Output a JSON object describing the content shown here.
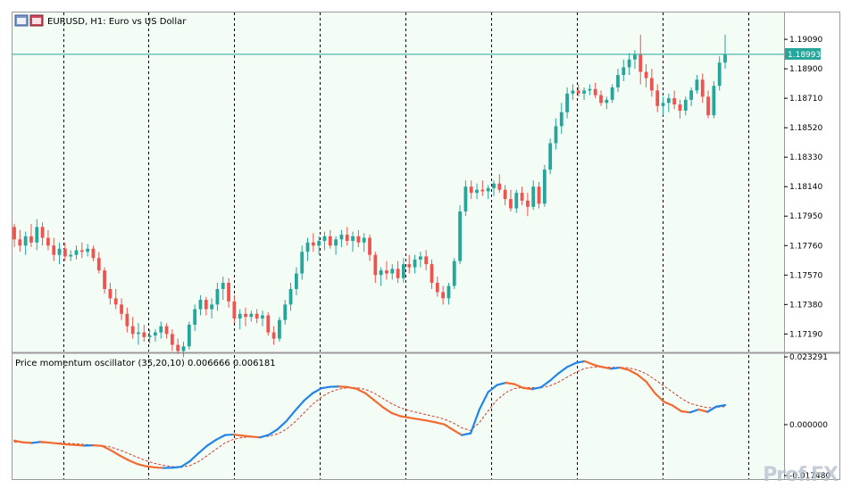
{
  "main_chart": {
    "title": "EURUSD, H1:  Euro vs US Dollar",
    "current_price_label": "1.18993",
    "current_price": 1.18993,
    "price_min": 1.171,
    "price_max": 1.1924,
    "price_ticks": [
      "1.19090",
      "1.18900",
      "1.18710",
      "1.18520",
      "1.18330",
      "1.18140",
      "1.17950",
      "1.17760",
      "1.17570",
      "1.17380",
      "1.17190"
    ],
    "candles": [
      [
        1.1788,
        1.179,
        1.1775,
        1.178
      ],
      [
        1.178,
        1.1786,
        1.1772,
        1.1776
      ],
      [
        1.1776,
        1.1785,
        1.177,
        1.1782
      ],
      [
        1.1782,
        1.179,
        1.1775,
        1.1778
      ],
      [
        1.1778,
        1.1793,
        1.1773,
        1.1788
      ],
      [
        1.1788,
        1.1791,
        1.1776,
        1.1781
      ],
      [
        1.1781,
        1.1786,
        1.1773,
        1.1776
      ],
      [
        1.1776,
        1.1781,
        1.1766,
        1.177
      ],
      [
        1.177,
        1.1778,
        1.1764,
        1.1774
      ],
      [
        1.1774,
        1.1778,
        1.1766,
        1.1769
      ],
      [
        1.1769,
        1.1773,
        1.1766,
        1.177
      ],
      [
        1.177,
        1.1776,
        1.1767,
        1.1773
      ],
      [
        1.1773,
        1.1778,
        1.1768,
        1.1772
      ],
      [
        1.1772,
        1.1777,
        1.1769,
        1.1774
      ],
      [
        1.1774,
        1.1776,
        1.1766,
        1.1768
      ],
      [
        1.1768,
        1.1772,
        1.1758,
        1.176
      ],
      [
        1.176,
        1.1762,
        1.1745,
        1.1748
      ],
      [
        1.1748,
        1.1752,
        1.1738,
        1.1742
      ],
      [
        1.1742,
        1.1748,
        1.1735,
        1.1738
      ],
      [
        1.1738,
        1.1742,
        1.1728,
        1.1732
      ],
      [
        1.1732,
        1.1736,
        1.172,
        1.1724
      ],
      [
        1.1724,
        1.173,
        1.1716,
        1.1719
      ],
      [
        1.1719,
        1.1726,
        1.1712,
        1.172
      ],
      [
        1.172,
        1.1725,
        1.1714,
        1.1717
      ],
      [
        1.1717,
        1.1722,
        1.1713,
        1.1718
      ],
      [
        1.1718,
        1.1722,
        1.1714,
        1.172
      ],
      [
        1.172,
        1.1727,
        1.1716,
        1.1724
      ],
      [
        1.1724,
        1.1726,
        1.1716,
        1.1719
      ],
      [
        1.1719,
        1.1722,
        1.1708,
        1.1712
      ],
      [
        1.1712,
        1.1716,
        1.1706,
        1.1708
      ],
      [
        1.1708,
        1.1714,
        1.1704,
        1.1711
      ],
      [
        1.1711,
        1.1727,
        1.1709,
        1.1725
      ],
      [
        1.1725,
        1.1738,
        1.1721,
        1.1735
      ],
      [
        1.1735,
        1.1744,
        1.1731,
        1.1741
      ],
      [
        1.1741,
        1.1743,
        1.1731,
        1.1735
      ],
      [
        1.1735,
        1.1742,
        1.1729,
        1.1738
      ],
      [
        1.1738,
        1.1752,
        1.1734,
        1.1748
      ],
      [
        1.1748,
        1.1756,
        1.1741,
        1.1752
      ],
      [
        1.1752,
        1.1755,
        1.1736,
        1.174
      ],
      [
        1.174,
        1.1744,
        1.1726,
        1.1729
      ],
      [
        1.1729,
        1.1735,
        1.1722,
        1.1732
      ],
      [
        1.1732,
        1.1736,
        1.1724,
        1.173
      ],
      [
        1.173,
        1.1734,
        1.1727,
        1.1732
      ],
      [
        1.1732,
        1.1735,
        1.1726,
        1.1729
      ],
      [
        1.1729,
        1.1734,
        1.1724,
        1.1731
      ],
      [
        1.1731,
        1.1733,
        1.1718,
        1.172
      ],
      [
        1.172,
        1.1724,
        1.1712,
        1.1716
      ],
      [
        1.1716,
        1.173,
        1.1714,
        1.1728
      ],
      [
        1.1728,
        1.1741,
        1.1725,
        1.1738
      ],
      [
        1.1738,
        1.1752,
        1.1734,
        1.1748
      ],
      [
        1.1748,
        1.1762,
        1.1744,
        1.1758
      ],
      [
        1.1758,
        1.1776,
        1.1754,
        1.1772
      ],
      [
        1.1772,
        1.1781,
        1.1766,
        1.1778
      ],
      [
        1.1778,
        1.1784,
        1.1772,
        1.1776
      ],
      [
        1.1776,
        1.1782,
        1.177,
        1.1779
      ],
      [
        1.1779,
        1.1785,
        1.1773,
        1.1782
      ],
      [
        1.1782,
        1.1786,
        1.1774,
        1.1776
      ],
      [
        1.1776,
        1.1782,
        1.177,
        1.178
      ],
      [
        1.178,
        1.1786,
        1.1775,
        1.1783
      ],
      [
        1.1783,
        1.1788,
        1.1776,
        1.1779
      ],
      [
        1.1779,
        1.1785,
        1.1772,
        1.1782
      ],
      [
        1.1782,
        1.1786,
        1.1775,
        1.1778
      ],
      [
        1.1778,
        1.1784,
        1.1772,
        1.1781
      ],
      [
        1.1781,
        1.1783,
        1.1766,
        1.177
      ],
      [
        1.177,
        1.1772,
        1.1752,
        1.1757
      ],
      [
        1.1757,
        1.1762,
        1.175,
        1.176
      ],
      [
        1.176,
        1.1766,
        1.1754,
        1.1758
      ],
      [
        1.1758,
        1.1764,
        1.1754,
        1.1761
      ],
      [
        1.1761,
        1.1766,
        1.1752,
        1.1755
      ],
      [
        1.1755,
        1.1768,
        1.1752,
        1.1764
      ],
      [
        1.1764,
        1.177,
        1.1758,
        1.1762
      ],
      [
        1.1762,
        1.177,
        1.1758,
        1.1767
      ],
      [
        1.1767,
        1.1772,
        1.1762,
        1.1769
      ],
      [
        1.1769,
        1.1773,
        1.176,
        1.1764
      ],
      [
        1.1764,
        1.1767,
        1.1748,
        1.1752
      ],
      [
        1.1752,
        1.1756,
        1.1743,
        1.1746
      ],
      [
        1.1746,
        1.175,
        1.1738,
        1.1742
      ],
      [
        1.1742,
        1.1752,
        1.1738,
        1.175
      ],
      [
        1.175,
        1.1768,
        1.1748,
        1.1766
      ],
      [
        1.1766,
        1.1802,
        1.1764,
        1.1798
      ],
      [
        1.1798,
        1.1818,
        1.1795,
        1.1814
      ],
      [
        1.1814,
        1.1818,
        1.1806,
        1.181
      ],
      [
        1.181,
        1.1816,
        1.1806,
        1.1812
      ],
      [
        1.1812,
        1.1818,
        1.1808,
        1.1811
      ],
      [
        1.1811,
        1.1815,
        1.1806,
        1.1813
      ],
      [
        1.1813,
        1.1818,
        1.1808,
        1.1816
      ],
      [
        1.1816,
        1.1822,
        1.181,
        1.1812
      ],
      [
        1.1812,
        1.1815,
        1.1802,
        1.1806
      ],
      [
        1.1806,
        1.1812,
        1.1798,
        1.18
      ],
      [
        1.18,
        1.1812,
        1.1797,
        1.181
      ],
      [
        1.181,
        1.1814,
        1.1802,
        1.1805
      ],
      [
        1.1805,
        1.181,
        1.1795,
        1.1801
      ],
      [
        1.1801,
        1.1818,
        1.1799,
        1.1814
      ],
      [
        1.1814,
        1.1817,
        1.18,
        1.1803
      ],
      [
        1.1803,
        1.1828,
        1.1801,
        1.1825
      ],
      [
        1.1825,
        1.1845,
        1.1822,
        1.1842
      ],
      [
        1.1842,
        1.1858,
        1.1838,
        1.1853
      ],
      [
        1.1853,
        1.1868,
        1.1848,
        1.1862
      ],
      [
        1.1862,
        1.1878,
        1.1858,
        1.1874
      ],
      [
        1.1874,
        1.188,
        1.187,
        1.1876
      ],
      [
        1.1876,
        1.188,
        1.1872,
        1.1874
      ],
      [
        1.1874,
        1.1878,
        1.187,
        1.1876
      ],
      [
        1.1876,
        1.188,
        1.1873,
        1.1877
      ],
      [
        1.1877,
        1.1881,
        1.1871,
        1.1873
      ],
      [
        1.1873,
        1.1876,
        1.1866,
        1.1868
      ],
      [
        1.1868,
        1.1872,
        1.1864,
        1.187
      ],
      [
        1.187,
        1.188,
        1.1868,
        1.1878
      ],
      [
        1.1878,
        1.189,
        1.1875,
        1.1886
      ],
      [
        1.1886,
        1.1896,
        1.1882,
        1.1891
      ],
      [
        1.1891,
        1.19,
        1.1886,
        1.1896
      ],
      [
        1.1896,
        1.1902,
        1.189,
        1.1899
      ],
      [
        1.1899,
        1.1912,
        1.188,
        1.1888
      ],
      [
        1.1888,
        1.1893,
        1.1878,
        1.1884
      ],
      [
        1.1884,
        1.189,
        1.1872,
        1.1876
      ],
      [
        1.1876,
        1.188,
        1.1862,
        1.1866
      ],
      [
        1.1866,
        1.1872,
        1.186,
        1.1868
      ],
      [
        1.1868,
        1.1874,
        1.1862,
        1.1871
      ],
      [
        1.1871,
        1.1876,
        1.1864,
        1.1867
      ],
      [
        1.1867,
        1.187,
        1.1858,
        1.1863
      ],
      [
        1.1863,
        1.1872,
        1.186,
        1.187
      ],
      [
        1.187,
        1.1878,
        1.1866,
        1.1876
      ],
      [
        1.1876,
        1.1886,
        1.1874,
        1.1883
      ],
      [
        1.1883,
        1.1887,
        1.1868,
        1.1872
      ],
      [
        1.1872,
        1.1876,
        1.1858,
        1.186
      ],
      [
        1.186,
        1.1882,
        1.1858,
        1.1879
      ],
      [
        1.1879,
        1.1898,
        1.1876,
        1.1894
      ],
      [
        1.1894,
        1.1912,
        1.189,
        1.1899
      ]
    ]
  },
  "oscillator": {
    "title": "Price momentum oscillator (35,20,10) 0.006666 0.006181",
    "value_min": -0.01748,
    "value_max": 0.023291,
    "ticks": [
      "0.023291",
      "0.000000",
      "-0.017480"
    ],
    "main_line": [
      -0.0055,
      -0.0061,
      -0.0063,
      -0.0059,
      -0.0062,
      -0.0065,
      -0.0068,
      -0.007,
      -0.0072,
      -0.0071,
      -0.0073,
      -0.0088,
      -0.0106,
      -0.0122,
      -0.0135,
      -0.0143,
      -0.0147,
      -0.0149,
      -0.0148,
      -0.0145,
      -0.0126,
      -0.0098,
      -0.0072,
      -0.0052,
      -0.0036,
      -0.0034,
      -0.0038,
      -0.0041,
      -0.0044,
      -0.0035,
      -0.0016,
      0.0012,
      0.0048,
      0.0082,
      0.0108,
      0.0125,
      0.013,
      0.0131,
      0.0129,
      0.0123,
      0.0108,
      0.0084,
      0.006,
      0.004,
      0.0029,
      0.0024,
      0.0019,
      0.0014,
      0.0008,
      0.0001,
      -0.0018,
      -0.0036,
      -0.003,
      0.0052,
      0.0112,
      0.0136,
      0.0144,
      0.0139,
      0.0126,
      0.0122,
      0.0128,
      0.015,
      0.0176,
      0.0198,
      0.0212,
      0.0218,
      0.0206,
      0.0198,
      0.0192,
      0.0196,
      0.0188,
      0.0172,
      0.0148,
      0.0108,
      0.0079,
      0.0066,
      0.0046,
      0.0042,
      0.0052,
      0.0044,
      0.0062,
      0.0067
    ],
    "signal_line": [
      -0.006,
      -0.006,
      -0.0061,
      -0.0062,
      -0.0062,
      -0.0063,
      -0.0064,
      -0.0066,
      -0.0068,
      -0.007,
      -0.0072,
      -0.0077,
      -0.0087,
      -0.0099,
      -0.0112,
      -0.0124,
      -0.0133,
      -0.014,
      -0.0144,
      -0.0146,
      -0.0141,
      -0.0127,
      -0.0106,
      -0.0084,
      -0.0063,
      -0.005,
      -0.0044,
      -0.0042,
      -0.0042,
      -0.004,
      -0.0032,
      -0.0016,
      0.001,
      0.004,
      0.007,
      0.0095,
      0.0112,
      0.0122,
      0.0127,
      0.0127,
      0.0121,
      0.0108,
      0.009,
      0.0072,
      0.0058,
      0.0048,
      0.0041,
      0.0034,
      0.0027,
      0.0019,
      0.0006,
      -0.0011,
      -0.002,
      0.0007,
      0.0048,
      0.0085,
      0.011,
      0.0124,
      0.0128,
      0.0127,
      0.0127,
      0.0133,
      0.0146,
      0.0163,
      0.018,
      0.0193,
      0.0198,
      0.0198,
      0.0197,
      0.0197,
      0.0195,
      0.0188,
      0.0175,
      0.0155,
      0.0133,
      0.0112,
      0.009,
      0.0073,
      0.0065,
      0.0058,
      0.006,
      0.0062
    ]
  },
  "colors": {
    "background": "#f4fcf6",
    "bull": "#26a69a",
    "bear": "#ef5350",
    "osc_up": "#2185e8",
    "osc_down": "#f26a30",
    "signal": "#d63b2b",
    "price_line": "#26a69a"
  },
  "watermark": "Prof.FX"
}
